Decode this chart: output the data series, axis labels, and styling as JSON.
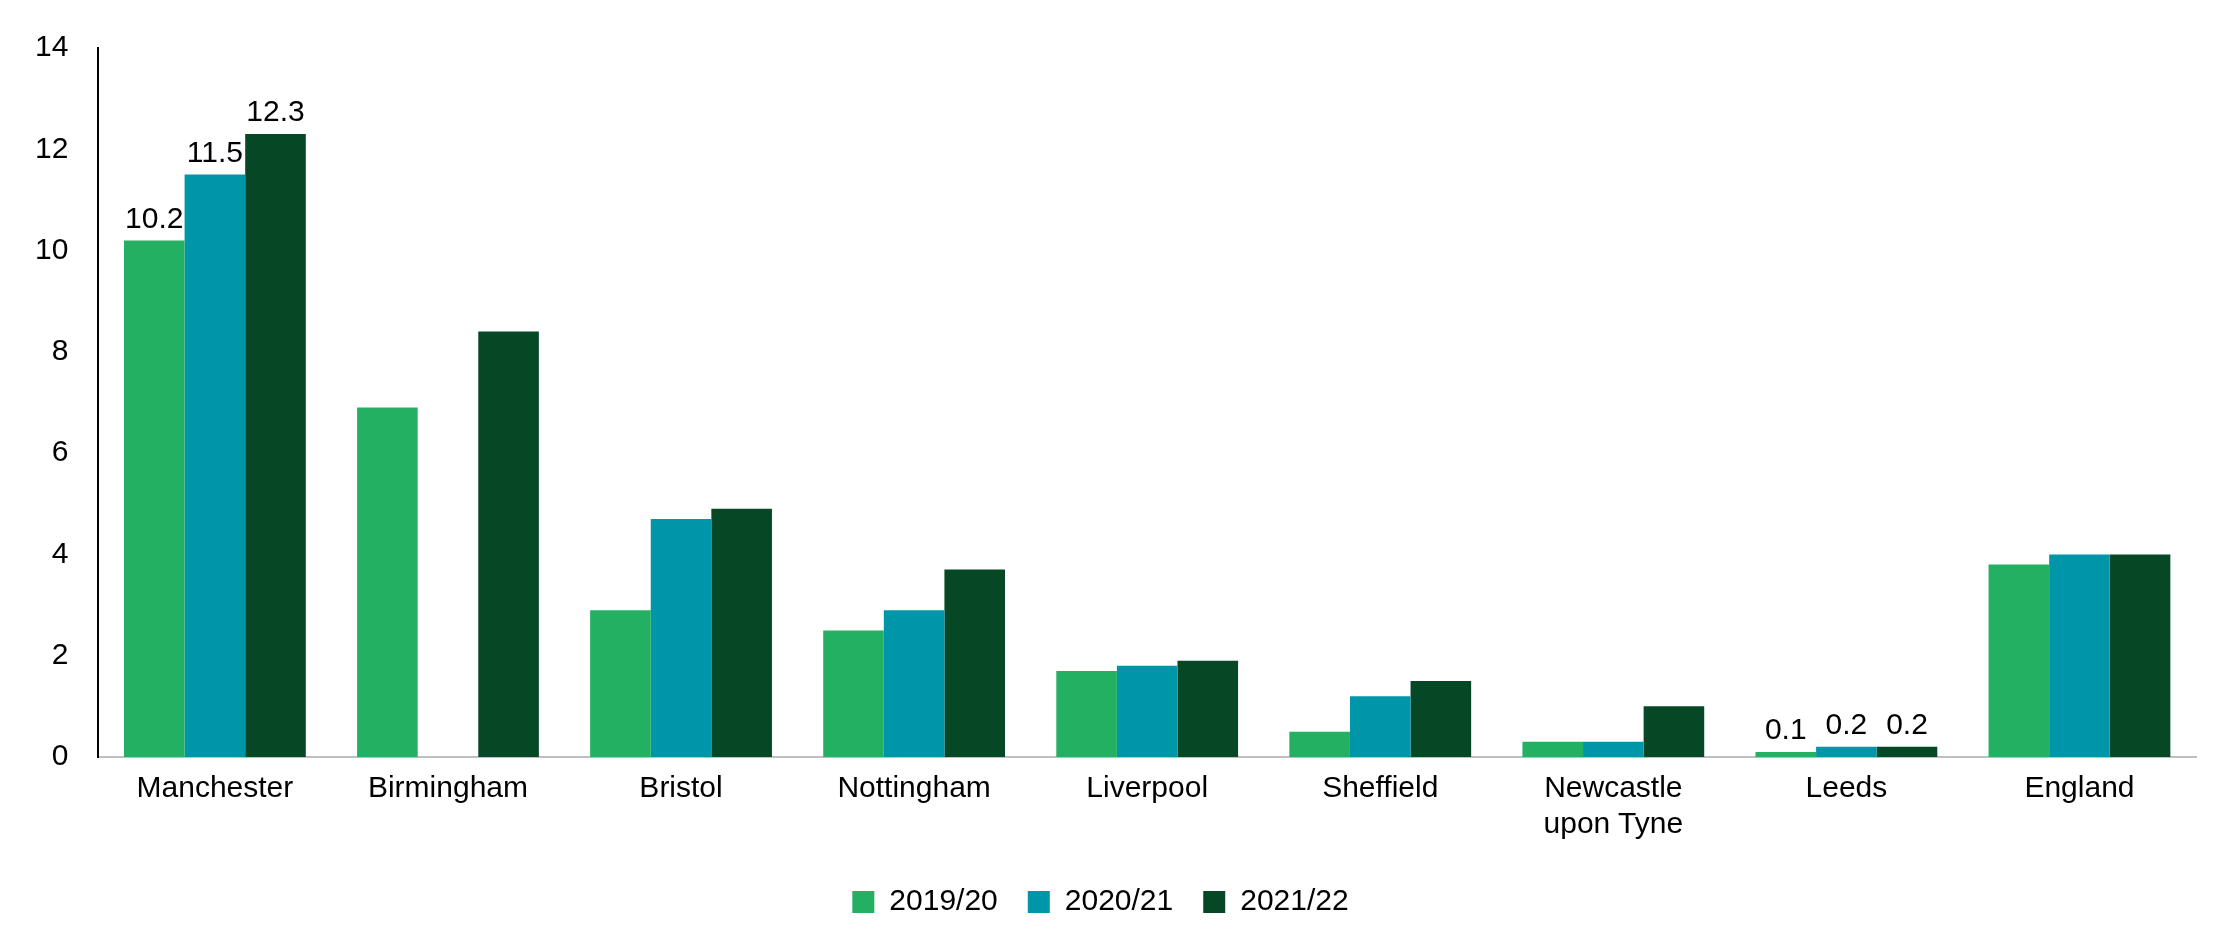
{
  "chart_data": {
    "type": "bar",
    "categories": [
      "Manchester",
      "Birmingham",
      "Bristol",
      "Nottingham",
      "Liverpool",
      "Sheffield",
      "Newcastle upon Tyne",
      "Leeds",
      "England"
    ],
    "series": [
      {
        "name": "2019/20",
        "color": "#23b063",
        "values": [
          10.2,
          6.9,
          2.9,
          2.5,
          1.7,
          0.5,
          0.3,
          0.1,
          3.8
        ],
        "value_labels": [
          "10.2",
          null,
          null,
          null,
          null,
          null,
          null,
          "0.1",
          null
        ]
      },
      {
        "name": "2020/21",
        "color": "#0096aa",
        "values": [
          11.5,
          null,
          4.7,
          2.9,
          1.8,
          1.2,
          0.3,
          0.2,
          4.0
        ],
        "value_labels": [
          "11.5",
          null,
          null,
          null,
          null,
          null,
          null,
          "0.2",
          null
        ]
      },
      {
        "name": "2021/22",
        "color": "#064826",
        "values": [
          12.3,
          8.4,
          4.9,
          3.7,
          1.9,
          1.5,
          1.0,
          0.2,
          4.0
        ],
        "value_labels": [
          "12.3",
          null,
          null,
          null,
          null,
          null,
          null,
          "0.2",
          null
        ]
      }
    ],
    "ylim": [
      0,
      14
    ],
    "yticks": [
      0,
      2,
      4,
      6,
      8,
      10,
      12,
      14
    ],
    "grid": false,
    "legend": "bottom"
  }
}
